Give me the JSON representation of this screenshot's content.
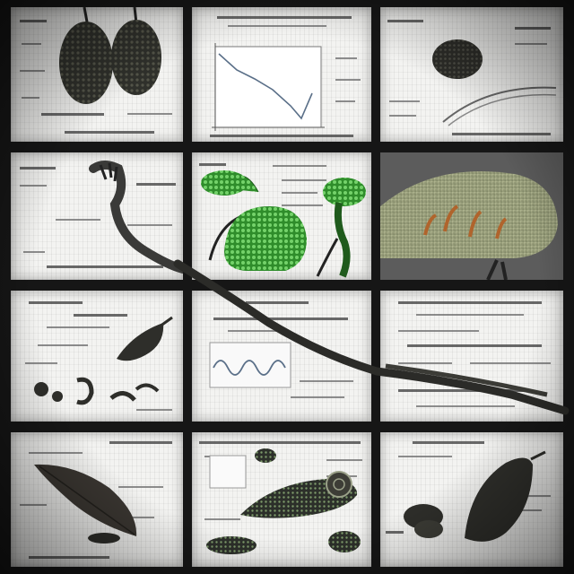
{
  "collage": {
    "background_color": "#161616",
    "panel_color": "#f3f3f1",
    "panels": [
      {
        "id": "r1c1",
        "subject": "seed-pods"
      },
      {
        "id": "r1c2",
        "subject": "line-plot"
      },
      {
        "id": "r1c3",
        "subject": "round-seed"
      },
      {
        "id": "r2c1",
        "subject": "curling-stem"
      },
      {
        "id": "r2c2",
        "subject": "green-seed-heads"
      },
      {
        "id": "r2c3",
        "subject": "textured-pod-photo"
      },
      {
        "id": "r3c1",
        "subject": "insect-larva-sketches"
      },
      {
        "id": "r3c2",
        "subject": "waveform-plot"
      },
      {
        "id": "r3c3",
        "subject": "text-only-sheet"
      },
      {
        "id": "r4c1",
        "subject": "leaf-specimen"
      },
      {
        "id": "r4c2",
        "subject": "snail-shell-specimen"
      },
      {
        "id": "r4c3",
        "subject": "dark-pod-specimen"
      }
    ],
    "colors": {
      "specimen_dark": "#2e2e2a",
      "specimen_green": "#3fae3a",
      "pod_photo_olive": "#9aa078",
      "pod_photo_orange": "#b0642c",
      "plot_line": "#5a6f88"
    }
  }
}
